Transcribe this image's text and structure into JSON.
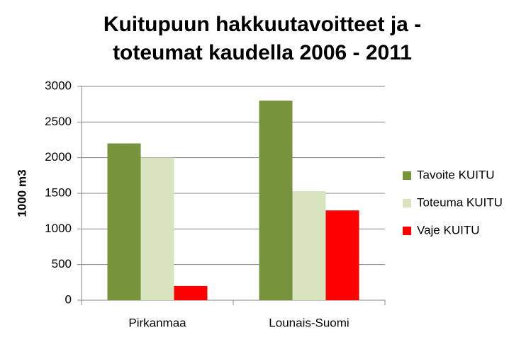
{
  "chart_data": {
    "type": "bar",
    "title": [
      "Kuitupuun hakkuutavoitteet ja -",
      "toteumat kaudella 2006 - 2011"
    ],
    "y_label": "1000 m3",
    "categories": [
      "Pirkanmaa",
      "Lounais-Suomi"
    ],
    "series": [
      {
        "name": "Tavoite KUITU",
        "color": "#77933c",
        "values": [
          2200,
          2800
        ]
      },
      {
        "name": "Toteuma KUITU",
        "color": "#d7e4bd",
        "values": [
          2000,
          1530
        ]
      },
      {
        "name": "Vaje KUITU",
        "color": "#ff0000",
        "values": [
          200,
          1260
        ]
      }
    ],
    "ylim": [
      0,
      3000
    ],
    "yticks": [
      0,
      500,
      1000,
      1500,
      2000,
      2500,
      3000
    ],
    "grid": true,
    "legend": "right"
  }
}
